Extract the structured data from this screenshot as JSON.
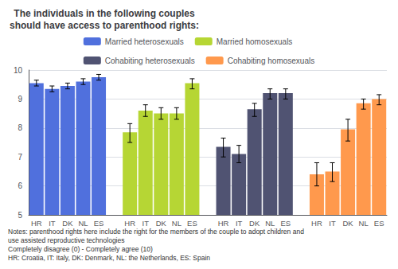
{
  "chart_data": {
    "type": "bar",
    "title": "The individuals in the following couples\nshould have access to parenthood rights:",
    "categories": [
      "HR",
      "IT",
      "DK",
      "NL",
      "ES"
    ],
    "series": [
      {
        "name": "Married heterosexuals",
        "values": [
          9.55,
          9.35,
          9.45,
          9.6,
          9.75
        ],
        "error_low": [
          0.1,
          0.1,
          0.1,
          0.1,
          0.1
        ],
        "error_high": [
          0.1,
          0.1,
          0.1,
          0.1,
          0.1
        ]
      },
      {
        "name": "Married homosexuals",
        "values": [
          7.85,
          8.6,
          8.5,
          8.5,
          9.55
        ],
        "error_low": [
          0.35,
          0.2,
          0.2,
          0.2,
          0.2
        ],
        "error_high": [
          0.3,
          0.2,
          0.2,
          0.2,
          0.15
        ]
      },
      {
        "name": "Cohabiting heterosexuals",
        "values": [
          7.35,
          7.1,
          8.65,
          9.2,
          9.2
        ],
        "error_low": [
          0.35,
          0.3,
          0.25,
          0.2,
          0.2
        ],
        "error_high": [
          0.3,
          0.3,
          0.2,
          0.15,
          0.15
        ]
      },
      {
        "name": "Cohabiting homosexuals",
        "values": [
          6.4,
          6.5,
          7.95,
          8.85,
          9.0
        ],
        "error_low": [
          0.4,
          0.35,
          0.4,
          0.2,
          0.2
        ],
        "error_high": [
          0.4,
          0.3,
          0.35,
          0.15,
          0.15
        ]
      }
    ],
    "ylim": [
      5,
      10
    ],
    "yticks": [
      5,
      6,
      7,
      8,
      9,
      10
    ],
    "grid": true,
    "legend": "top",
    "annotations": [
      "Notes: parenthood rights here include the right for the members of the couple to adopt children and",
      "use assisted reproductive technologies",
      "Completely disagree (0) - Completely agree (10)",
      "HR: Croatia, IT: Italy, DK: Denmark, NL: the Netherlands, ES: Spain"
    ]
  }
}
